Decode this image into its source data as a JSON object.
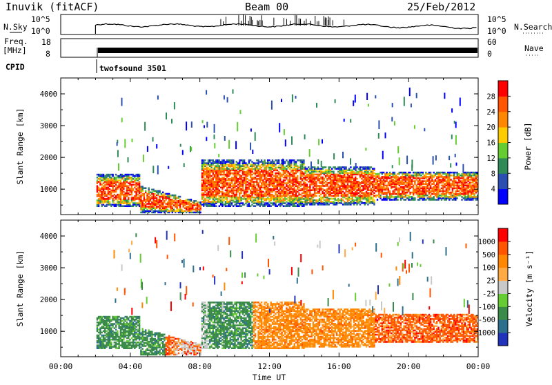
{
  "header": {
    "station": "Inuvik (fitACF)",
    "beam": "Beam 00",
    "date": "25/Feb/2012"
  },
  "top_panel": {
    "left_label": "N.Sky",
    "left_ticks": [
      "10^5",
      "10^0"
    ],
    "right_ticks": [
      "10^5",
      "10^0"
    ],
    "right_label": "N.Search"
  },
  "freq_panel": {
    "left_label_1": "Freq.",
    "left_label_2": "[MHz]",
    "left_ticks": [
      "18",
      "8"
    ],
    "right_ticks": [
      "60",
      "0"
    ],
    "right_label": "Nave"
  },
  "cpid": {
    "label": "CPID",
    "value": "twofsound 3501"
  },
  "chart_data": [
    {
      "type": "heatmap",
      "quantity": "Power",
      "ylabel": "Slant Range [km]",
      "ylim": [
        200,
        4500
      ],
      "yticks": [
        "4000",
        "3000",
        "2000",
        "1000"
      ],
      "xlim": [
        "00:00",
        "24:00"
      ],
      "colorbar_label": "Power [dB]",
      "colorbar_ticks": [
        "28",
        "24",
        "20",
        "16",
        "12",
        "8",
        "4"
      ],
      "colors": [
        "#0000ff",
        "#2a4fb0",
        "#2e8b57",
        "#66cc33",
        "#ffcc00",
        "#ff8800",
        "#ff5500",
        "#ff0000"
      ],
      "value_range": [
        0,
        32
      ],
      "dominant_color": "#ff2200"
    },
    {
      "type": "heatmap",
      "quantity": "Velocity",
      "ylabel": "Slant Range [km]",
      "ylim": [
        200,
        4500
      ],
      "yticks": [
        "4000",
        "3000",
        "2000",
        "1000"
      ],
      "xlim": [
        "00:00",
        "24:00"
      ],
      "xticks": [
        "00:00",
        "04:00",
        "08:00",
        "12:00",
        "16:00",
        "20:00",
        "00:00"
      ],
      "xlabel": "Time UT",
      "colorbar_label": "Velocity [m s⁻¹]",
      "colorbar_ticks": [
        "1000",
        "500",
        "100",
        "25",
        "-25",
        "-100",
        "-500",
        "-1000"
      ],
      "colors": [
        "#2233bb",
        "#2e6f8e",
        "#3a8a4a",
        "#66cc33",
        "#c8c8c8",
        "#ffaa44",
        "#ff8800",
        "#ff5500",
        "#ff0000"
      ],
      "ground_scatter_color": "#c8c8c8"
    }
  ]
}
